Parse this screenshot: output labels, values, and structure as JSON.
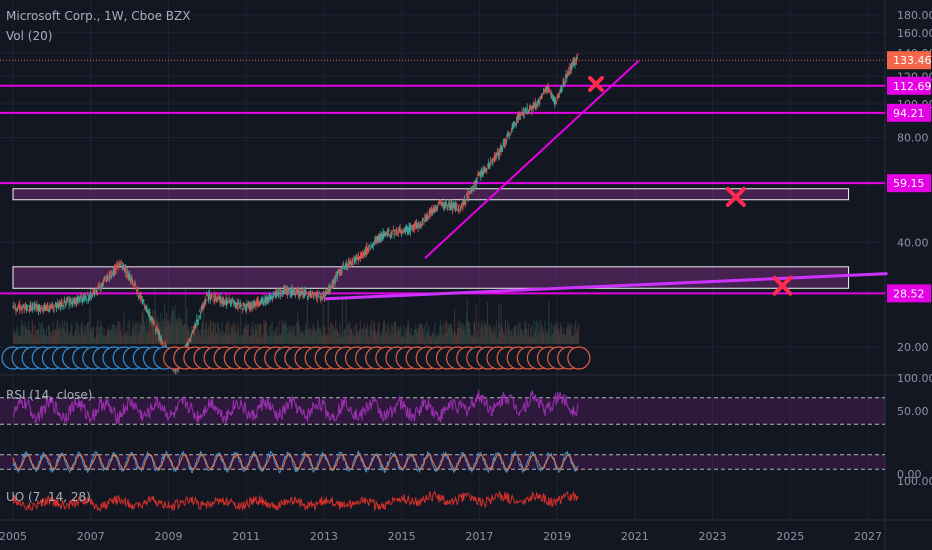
{
  "header": {
    "title": "Microsoft Corp., 1W, Cboe BZX",
    "vol_label": "Vol (20)"
  },
  "panes": {
    "rsi_label": "RSI (14, close)",
    "uo_label": "UO (7, 14, 28)"
  },
  "price_axis": {
    "ticks": [
      "180.00",
      "160.00",
      "140.00",
      "120.00",
      "100.00",
      "80.00",
      "60.00",
      "40.00",
      "20.00"
    ],
    "badges": [
      {
        "text": "133.46",
        "type": "last"
      },
      {
        "text": "112.69",
        "type": "level"
      },
      {
        "text": "94.21",
        "type": "level"
      },
      {
        "text": "59.15",
        "type": "level"
      },
      {
        "text": "28.52",
        "type": "level"
      }
    ]
  },
  "rsi_axis": {
    "ticks": [
      "100.00",
      "50.00",
      "0.00"
    ]
  },
  "uo_axis": {
    "ticks": [
      "100.00"
    ]
  },
  "time_axis": {
    "ticks": [
      "2005",
      "2007",
      "2009",
      "2011",
      "2013",
      "2015",
      "2017",
      "2019",
      "2021",
      "2023",
      "2025",
      "2027"
    ]
  },
  "colors": {
    "background": "#131722",
    "level_line": "#e600e6",
    "trendline": "#cc33ff",
    "last_price": "#f5674a",
    "cross": "#ff2a4d",
    "rsi": "#9b2fae",
    "uo": "#d1302b",
    "dividend": "#2f8fd8",
    "earnings": "#e25c45"
  },
  "chart_data": {
    "type": "line",
    "title": "Microsoft Corp., 1W, Cboe BZX",
    "symbol": "MSFT",
    "interval": "1W",
    "y_scale": "log",
    "ylim": [
      18,
      190
    ],
    "x_range": [
      2005,
      2027.5
    ],
    "x": [
      2005.0,
      2006.0,
      2007.0,
      2007.8,
      2008.5,
      2009.2,
      2010.0,
      2011.0,
      2012.0,
      2013.0,
      2013.5,
      2014.0,
      2014.5,
      2015.0,
      2015.5,
      2016.0,
      2016.5,
      2017.0,
      2017.5,
      2018.0,
      2018.5,
      2018.75,
      2018.95,
      2019.2,
      2019.4,
      2019.55
    ],
    "close": [
      26,
      26,
      28,
      35,
      25,
      17,
      28,
      26,
      29,
      28,
      34,
      37,
      42,
      43,
      45,
      52,
      50,
      62,
      72,
      92,
      100,
      112,
      100,
      117,
      130,
      137
    ],
    "last_price": 133.46,
    "horizontal_levels": [
      112.69,
      94.21,
      59.15,
      28.52
    ],
    "zones": [
      {
        "from_year": 2005,
        "to_year": 2026.5,
        "low": 53,
        "high": 57
      },
      {
        "from_year": 2005,
        "to_year": 2026.5,
        "low": 29.5,
        "high": 34
      }
    ],
    "trendlines": [
      {
        "points": [
          [
            2015.6,
            36
          ],
          [
            2021.1,
            133
          ]
        ]
      },
      {
        "points": [
          [
            2013.0,
            27.5
          ],
          [
            2027.5,
            32.5
          ]
        ]
      }
    ],
    "x_marks": [
      {
        "year": 2020.0,
        "price": 114
      },
      {
        "year": 2023.6,
        "price": 54
      },
      {
        "year": 2024.8,
        "price": 30
      }
    ],
    "rsi": {
      "name": "RSI (14, close)",
      "ylim": [
        0,
        100
      ],
      "bands": [
        30,
        70
      ]
    }
  }
}
